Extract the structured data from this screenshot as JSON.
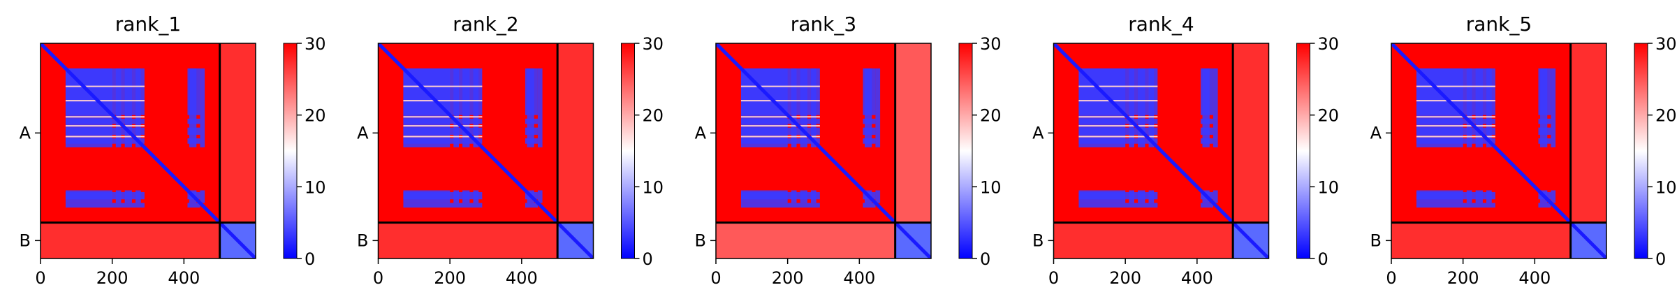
{
  "chart_data": {
    "type": "heatmap",
    "colormap": {
      "name": "bwr",
      "low": "#0000ff",
      "mid": "#ffffff",
      "high": "#ff0000"
    },
    "clim": [
      0,
      30
    ],
    "colorbar_ticks": [
      "0",
      "10",
      "20",
      "30"
    ],
    "xlim": [
      0,
      600
    ],
    "x_ticks": [
      0,
      200,
      400
    ],
    "x_tick_labels": [
      "0",
      "200",
      "400"
    ],
    "chain_boundary": 500,
    "chains": [
      "A",
      "B"
    ],
    "panels": [
      {
        "title": "rank_1"
      },
      {
        "title": "rank_2"
      },
      {
        "title": "rank_3"
      },
      {
        "title": "rank_4"
      },
      {
        "title": "rank_5"
      }
    ]
  }
}
